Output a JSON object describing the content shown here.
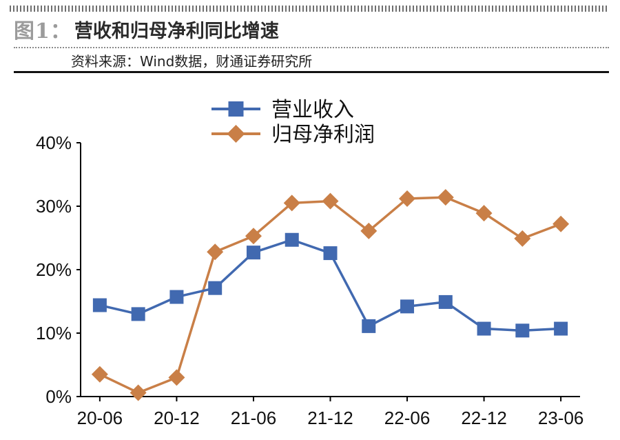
{
  "header": {
    "figure_label": "图1：",
    "title": "营收和归母净利同比增速",
    "source": "资料来源：Wind数据，财通证券研究所"
  },
  "chart_data": {
    "type": "line",
    "title": "",
    "xlabel": "",
    "ylabel": "",
    "x": [
      "20-06",
      "20-09",
      "20-12",
      "21-03",
      "21-06",
      "21-09",
      "21-12",
      "22-03",
      "22-06",
      "22-09",
      "22-12",
      "23-03",
      "23-06"
    ],
    "x_tick_labels": [
      "20-06",
      "20-12",
      "21-06",
      "21-12",
      "22-06",
      "22-12",
      "23-06"
    ],
    "y_tick_labels": [
      "0%",
      "10%",
      "20%",
      "30%",
      "40%"
    ],
    "ylim": [
      0,
      40
    ],
    "grid": false,
    "legend_position": "top-center",
    "series": [
      {
        "name": "营业收入",
        "marker": "square",
        "color": "#4169b0",
        "values": [
          14.4,
          13.0,
          15.7,
          17.1,
          22.7,
          24.7,
          22.6,
          11.1,
          14.2,
          14.9,
          10.7,
          10.4,
          10.7
        ]
      },
      {
        "name": "归母净利润",
        "marker": "diamond",
        "color": "#c97f47",
        "values": [
          3.5,
          0.6,
          3.0,
          22.8,
          25.3,
          30.5,
          30.8,
          26.1,
          31.2,
          31.4,
          28.9,
          24.9,
          27.2
        ]
      }
    ]
  }
}
